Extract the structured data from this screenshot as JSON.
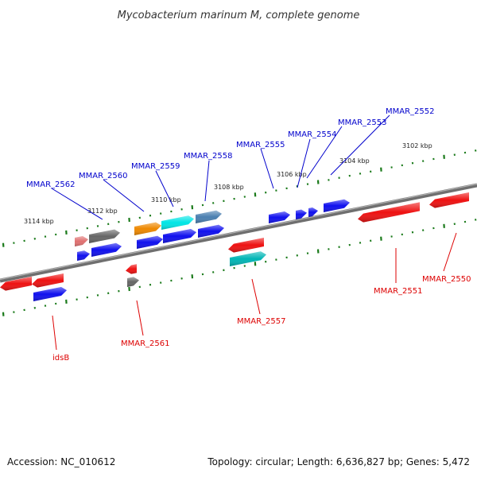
{
  "header": {
    "title": "Mycobacterium marinum M, complete genome"
  },
  "footer": {
    "accession": "Accession: NC_010612",
    "summary": "Topology: circular; Length: 6,636,827 bp; Genes: 5,472"
  },
  "colors": {
    "backbone": "#7a7a7a",
    "tick": "#1a7a1a",
    "forward_label": "#0000cc",
    "reverse_label": "#dd0000",
    "blue": "#1010ee",
    "red": "#ee1111",
    "gray": "#666666",
    "pink": "#e07070",
    "orange": "#ee8800",
    "cyan": "#00e5e5",
    "steel": "#4a7fb0",
    "teal": "#00b5b5"
  },
  "scale": {
    "labels": [
      "3102 kbp",
      "3104 kbp",
      "3106 kbp",
      "3108 kbp",
      "3110 kbp",
      "3112 kbp",
      "3114 kbp"
    ]
  },
  "genes": {
    "forward_labels": [
      "MMAR_2552",
      "MMAR_2553",
      "MMAR_2554",
      "MMAR_2555",
      "MMAR_2558",
      "MMAR_2559",
      "MMAR_2560",
      "MMAR_2562"
    ],
    "reverse_labels": [
      "MMAR_2550",
      "MMAR_2551",
      "MMAR_2557",
      "MMAR_2561",
      "idsB"
    ]
  }
}
